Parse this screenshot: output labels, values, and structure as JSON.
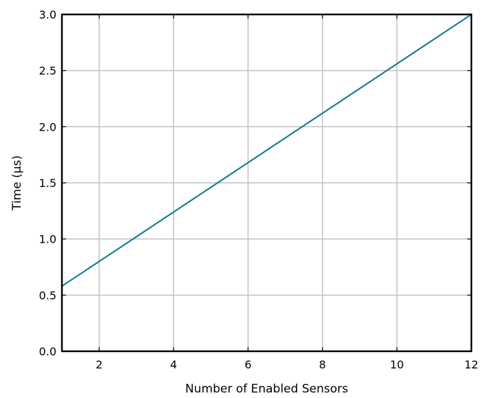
{
  "chart_data": {
    "type": "line",
    "title": "",
    "xlabel": "Number of Enabled Sensors",
    "ylabel": "Time (µs)",
    "xlim": [
      1,
      12
    ],
    "ylim": [
      0.0,
      3.0
    ],
    "xticks": [
      2,
      4,
      6,
      8,
      10,
      12
    ],
    "xtick_labels": [
      "2",
      "4",
      "6",
      "8",
      "10",
      "12"
    ],
    "yticks": [
      0.0,
      0.5,
      1.0,
      1.5,
      2.0,
      2.5,
      3.0
    ],
    "ytick_labels": [
      "0.0",
      "0.5",
      "1.0",
      "1.5",
      "2.0",
      "2.5",
      "3.0"
    ],
    "grid": true,
    "series": [
      {
        "color": "#1a7a94",
        "x": [
          1,
          12
        ],
        "y": [
          0.58,
          3.0
        ]
      }
    ]
  },
  "colors": {
    "line": "#1a7a94",
    "grid": "#c0c0c0",
    "axes": "#000000"
  }
}
